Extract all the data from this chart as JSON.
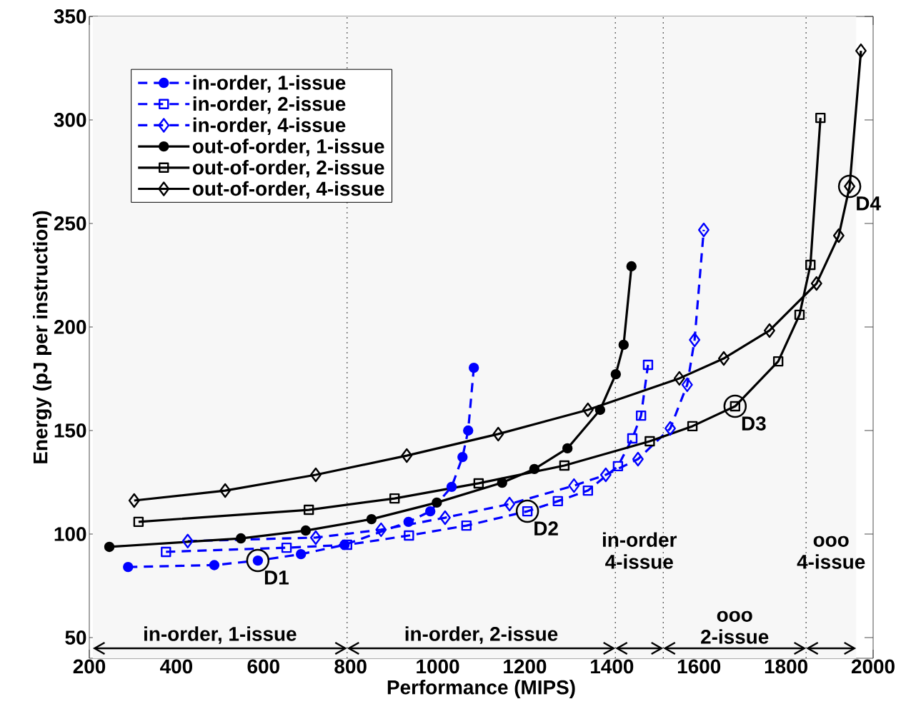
{
  "chart_data": {
    "type": "line",
    "xlabel": "Performance (MIPS)",
    "ylabel": "Energy (pJ per instruction)",
    "xlim": [
      200,
      2000
    ],
    "ylim": [
      40,
      350
    ],
    "xticks": [
      200,
      400,
      600,
      800,
      1000,
      1200,
      1400,
      1600,
      1800,
      2000
    ],
    "yticks": [
      50,
      100,
      150,
      200,
      250,
      300,
      350
    ],
    "legend": "top left",
    "series": [
      {
        "name": "in-order, 1-issue",
        "color": "#0000ff",
        "marker": "circle",
        "line_style": "dashed",
        "x": [
          289,
          487,
          587,
          686,
          786,
          933,
          983,
          1032,
          1057,
          1070,
          1083
        ],
        "values": [
          84.1,
          85,
          87.2,
          90.3,
          94.8,
          105.9,
          111,
          122.8,
          137.2,
          150,
          180.3
        ]
      },
      {
        "name": "in-order, 2-issue",
        "color": "#0000ff",
        "marker": "square",
        "line_style": "dashed",
        "x": [
          376,
          653,
          792,
          934,
          1066,
          1206,
          1276,
          1345,
          1414,
          1447,
          1467,
          1483
        ],
        "values": [
          91.4,
          93.4,
          94.8,
          99.3,
          104.1,
          111,
          115.9,
          121,
          132.8,
          146.2,
          157.2,
          181.7
        ]
      },
      {
        "name": "in-order, 4-issue",
        "color": "#0000ff",
        "marker": "diamond",
        "line_style": "dashed",
        "x": [
          426,
          720,
          870,
          1017,
          1165,
          1313,
          1386,
          1460,
          1534,
          1573,
          1590,
          1611
        ],
        "values": [
          96.6,
          98.3,
          102.1,
          107.9,
          114.5,
          123.4,
          128.6,
          136.2,
          151,
          172.1,
          193.8,
          246.9
        ]
      },
      {
        "name": "out-of-order, 1-issue",
        "color": "#000000",
        "marker": "circle",
        "line_style": "solid",
        "x": [
          246,
          548,
          697,
          848,
          998,
          1148,
          1222,
          1298,
          1373,
          1409,
          1427,
          1445
        ],
        "values": [
          93.8,
          97.9,
          101.7,
          107.2,
          115.2,
          124.8,
          131.4,
          141.4,
          160,
          177.2,
          191.4,
          229.3
        ]
      },
      {
        "name": "out-of-order, 2-issue",
        "color": "#000000",
        "marker": "square",
        "line_style": "solid",
        "x": [
          313,
          704,
          901,
          1094,
          1291,
          1487,
          1585,
          1683,
          1782,
          1831,
          1856,
          1879
        ],
        "values": [
          105.9,
          111.7,
          117.2,
          124.5,
          133.1,
          144.8,
          152.1,
          161.7,
          183.4,
          205.9,
          230,
          301
        ]
      },
      {
        "name": "out-of-order, 4-issue",
        "color": "#000000",
        "marker": "diamond",
        "line_style": "solid",
        "x": [
          303,
          512,
          720,
          929,
          1139,
          1345,
          1555,
          1657,
          1762,
          1870,
          1921,
          1946,
          1972
        ],
        "values": [
          116.2,
          121,
          128.6,
          137.9,
          148.3,
          160,
          175.2,
          184.8,
          198.3,
          221,
          244.1,
          267.9,
          333.4
        ]
      }
    ],
    "annotations": [
      {
        "text": "D1",
        "x": 587,
        "y": 87.2
      },
      {
        "text": "D2",
        "x": 1206,
        "y": 111
      },
      {
        "text": "D3",
        "x": 1683,
        "y": 161.7
      },
      {
        "text": "D4",
        "x": 1946,
        "y": 267.9
      }
    ],
    "ref_lines": [
      {
        "axis": "x",
        "value": 792,
        "line_style": "dotted"
      },
      {
        "axis": "x",
        "value": 1408,
        "line_style": "dotted"
      },
      {
        "axis": "x",
        "value": 1518,
        "line_style": "dotted"
      },
      {
        "axis": "x",
        "value": 1846,
        "line_style": "dotted"
      }
    ],
    "bands": [
      {
        "axis": "x",
        "from": 208,
        "to": 792,
        "label": "in-order, 1-issue",
        "color": "#f7f7f7"
      },
      {
        "axis": "x",
        "from": 792,
        "to": 1408,
        "label": "in-order, 2-issue",
        "color": "#f7f7f7"
      },
      {
        "axis": "x",
        "from": 1408,
        "to": 1518,
        "label": "in-order 4-issue",
        "color": "#f7f7f7"
      },
      {
        "axis": "x",
        "from": 1518,
        "to": 1846,
        "label": "ooo 2-issue",
        "color": "#f7f7f7"
      },
      {
        "axis": "x",
        "from": 1846,
        "to": 1961,
        "label": "ooo 4-issue",
        "color": "#f7f7f7"
      }
    ]
  }
}
